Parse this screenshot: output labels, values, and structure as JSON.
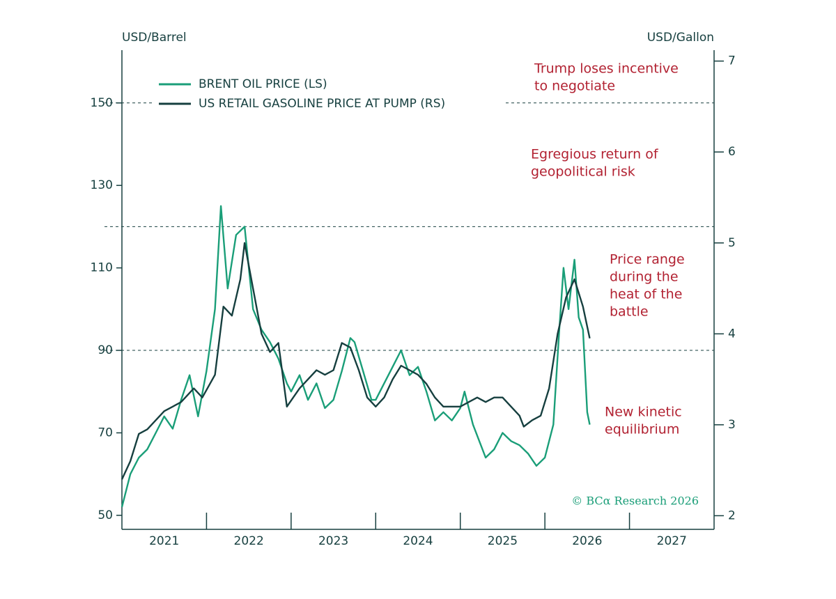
{
  "chart_data": {
    "type": "line",
    "y_label": "USD/Barrel",
    "y2_label": "USD/Gallon",
    "source": "© BCα Research 2026",
    "xlim": [
      2021,
      2028
    ],
    "xticks": [
      {
        "value": 2021.5,
        "label": "2021"
      },
      {
        "value": 2022.5,
        "label": "2022"
      },
      {
        "value": 2023.5,
        "label": "2023"
      },
      {
        "value": 2024.5,
        "label": "2024"
      },
      {
        "value": 2025.5,
        "label": "2025"
      },
      {
        "value": 2026.5,
        "label": "2026"
      },
      {
        "value": 2027.5,
        "label": "2027"
      }
    ],
    "ylim": [
      46.6,
      162.8
    ],
    "yticks": [
      50,
      70,
      90,
      110,
      130,
      150
    ],
    "y2lim": [
      1.85,
      7.12
    ],
    "y2ticks": [
      2,
      3,
      4,
      5,
      6,
      7
    ],
    "hlines": [
      150,
      120,
      90
    ],
    "legend": "upper left",
    "series": [
      {
        "name": "BRENT OIL PRICE (LS)",
        "color": "#1a9e78",
        "x": [
          2021.0,
          2021.1,
          2021.2,
          2021.3,
          2021.4,
          2021.5,
          2021.6,
          2021.7,
          2021.8,
          2021.9,
          2022.0,
          2022.1,
          2022.17,
          2022.25,
          2022.35,
          2022.45,
          2022.55,
          2022.65,
          2022.75,
          2022.85,
          2022.95,
          2023.0,
          2023.1,
          2023.2,
          2023.3,
          2023.4,
          2023.5,
          2023.6,
          2023.7,
          2023.75,
          2023.85,
          2023.95,
          2024.0,
          2024.1,
          2024.2,
          2024.3,
          2024.4,
          2024.5,
          2024.6,
          2024.7,
          2024.8,
          2024.9,
          2025.0,
          2025.05,
          2025.15,
          2025.3,
          2025.4,
          2025.5,
          2025.6,
          2025.7,
          2025.8,
          2025.9,
          2026.0,
          2026.1,
          2026.17,
          2026.22,
          2026.28,
          2026.35,
          2026.4,
          2026.45,
          2026.5,
          2026.53
        ],
        "values": [
          52,
          60,
          64,
          66,
          70,
          74,
          71,
          78,
          84,
          74,
          85,
          100,
          125,
          105,
          118,
          120,
          100,
          95,
          92,
          88,
          82,
          80,
          84,
          78,
          82,
          76,
          78,
          85,
          93,
          92,
          85,
          78,
          78,
          82,
          86,
          90,
          84,
          86,
          80,
          73,
          75,
          73,
          76,
          80,
          72,
          64,
          66,
          70,
          68,
          67,
          65,
          62,
          64,
          72,
          95,
          110,
          100,
          112,
          98,
          95,
          75,
          72
        ]
      },
      {
        "name": "US RETAIL GASOLINE PRICE AT PUMP (RS)",
        "color": "#163f3f",
        "axis": "y2",
        "x": [
          2021.0,
          2021.1,
          2021.2,
          2021.3,
          2021.4,
          2021.5,
          2021.6,
          2021.7,
          2021.85,
          2021.95,
          2022.1,
          2022.2,
          2022.3,
          2022.4,
          2022.45,
          2022.55,
          2022.65,
          2022.75,
          2022.85,
          2022.95,
          2023.1,
          2023.2,
          2023.3,
          2023.4,
          2023.5,
          2023.6,
          2023.7,
          2023.8,
          2023.9,
          2024.0,
          2024.1,
          2024.2,
          2024.3,
          2024.4,
          2024.5,
          2024.6,
          2024.7,
          2024.8,
          2024.9,
          2025.0,
          2025.1,
          2025.2,
          2025.3,
          2025.4,
          2025.5,
          2025.6,
          2025.7,
          2025.75,
          2025.85,
          2025.95,
          2026.05,
          2026.15,
          2026.25,
          2026.35,
          2026.45,
          2026.53
        ],
        "values": [
          2.4,
          2.6,
          2.9,
          2.95,
          3.05,
          3.15,
          3.2,
          3.25,
          3.4,
          3.3,
          3.55,
          4.3,
          4.2,
          4.6,
          5.0,
          4.5,
          4.0,
          3.8,
          3.9,
          3.2,
          3.4,
          3.5,
          3.6,
          3.55,
          3.6,
          3.9,
          3.85,
          3.6,
          3.3,
          3.2,
          3.3,
          3.5,
          3.65,
          3.6,
          3.55,
          3.45,
          3.3,
          3.2,
          3.2,
          3.2,
          3.25,
          3.3,
          3.25,
          3.3,
          3.3,
          3.2,
          3.1,
          2.98,
          3.05,
          3.1,
          3.4,
          4.0,
          4.4,
          4.6,
          4.3,
          3.95
        ]
      }
    ],
    "annotations": [
      {
        "text": [
          "Trump loses incentive",
          "to negotiate"
        ]
      },
      {
        "text": [
          "Egregious return of",
          "geopolitical risk"
        ]
      },
      {
        "text": [
          "Price range",
          "during the",
          "heat of the",
          "battle"
        ]
      },
      {
        "text": [
          "New kinetic",
          "equilibrium"
        ]
      }
    ]
  }
}
